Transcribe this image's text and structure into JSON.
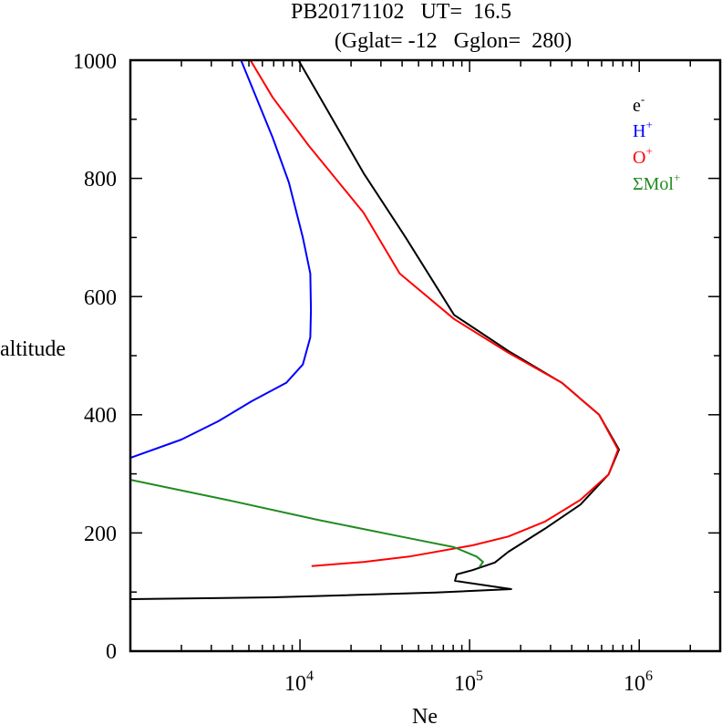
{
  "chart_data": {
    "type": "line",
    "title": "PB20171102   UT=  16.5",
    "subtitle": "(Gglat= -12   Gglon=  280)",
    "xlabel": "Ne",
    "ylabel": "altitude",
    "xscale": "log",
    "xlim": [
      1000,
      3000000
    ],
    "ylim": [
      0,
      1000
    ],
    "x_ticks": [
      {
        "value": 10000,
        "base": "10",
        "exp": "4"
      },
      {
        "value": 100000,
        "base": "10",
        "exp": "5"
      },
      {
        "value": 1000000,
        "base": "10",
        "exp": "6"
      }
    ],
    "y_ticks": [
      {
        "value": 0,
        "label": "0"
      },
      {
        "value": 200,
        "label": "200"
      },
      {
        "value": 400,
        "label": "400"
      },
      {
        "value": 600,
        "label": "600"
      },
      {
        "value": 800,
        "label": "800"
      },
      {
        "value": 1000,
        "label": "1000"
      }
    ],
    "grid": false,
    "legend_position": "top-right",
    "series": [
      {
        "name": "e-",
        "label_base": "e",
        "label_sup": "-",
        "color": "#000000",
        "points": [
          [
            9800,
            1000
          ],
          [
            14400,
            917
          ],
          [
            23700,
            809
          ],
          [
            42000,
            700
          ],
          [
            81000,
            569
          ],
          [
            169000,
            508
          ],
          [
            350000,
            454
          ],
          [
            580000,
            400
          ],
          [
            760000,
            341
          ],
          [
            660000,
            299
          ],
          [
            450000,
            248
          ],
          [
            277000,
            207
          ],
          [
            169000,
            168
          ],
          [
            141000,
            150
          ],
          [
            104000,
            137
          ],
          [
            84000,
            130
          ],
          [
            82000,
            119
          ],
          [
            176000,
            105
          ],
          [
            63000,
            99
          ],
          [
            6900,
            91
          ],
          [
            1000,
            88
          ]
        ]
      },
      {
        "name": "H+",
        "label_base": "H",
        "label_sup": "+",
        "color": "#0000ff",
        "points": [
          [
            4490,
            1000
          ],
          [
            6900,
            869
          ],
          [
            8600,
            793
          ],
          [
            10400,
            700
          ],
          [
            11500,
            639
          ],
          [
            11600,
            577
          ],
          [
            11500,
            531
          ],
          [
            10400,
            485
          ],
          [
            8300,
            454
          ],
          [
            5200,
            423
          ],
          [
            3300,
            389
          ],
          [
            2000,
            358
          ],
          [
            1000,
            327
          ]
        ]
      },
      {
        "name": "O+",
        "label_base": "O",
        "label_sup": "+",
        "color": "#ff0000",
        "points": [
          [
            5100,
            1000
          ],
          [
            6900,
            937
          ],
          [
            11300,
            855
          ],
          [
            23700,
            742
          ],
          [
            38700,
            639
          ],
          [
            81000,
            562
          ],
          [
            169000,
            505
          ],
          [
            350000,
            454
          ],
          [
            580000,
            400
          ],
          [
            750000,
            341
          ],
          [
            660000,
            299
          ],
          [
            450000,
            256
          ],
          [
            277000,
            219
          ],
          [
            169000,
            194
          ],
          [
            104000,
            179
          ],
          [
            44000,
            160
          ],
          [
            23700,
            151
          ],
          [
            11700,
            144
          ]
        ]
      },
      {
        "name": "ΣMol+",
        "label_base": "ΣMol",
        "label_sup": "+",
        "color": "#228b22",
        "points": [
          [
            1000,
            290
          ],
          [
            3700,
            256
          ],
          [
            12800,
            222
          ],
          [
            44000,
            191
          ],
          [
            81000,
            176
          ],
          [
            110000,
            160
          ],
          [
            120000,
            151
          ],
          [
            114000,
            142
          ]
        ]
      }
    ]
  }
}
